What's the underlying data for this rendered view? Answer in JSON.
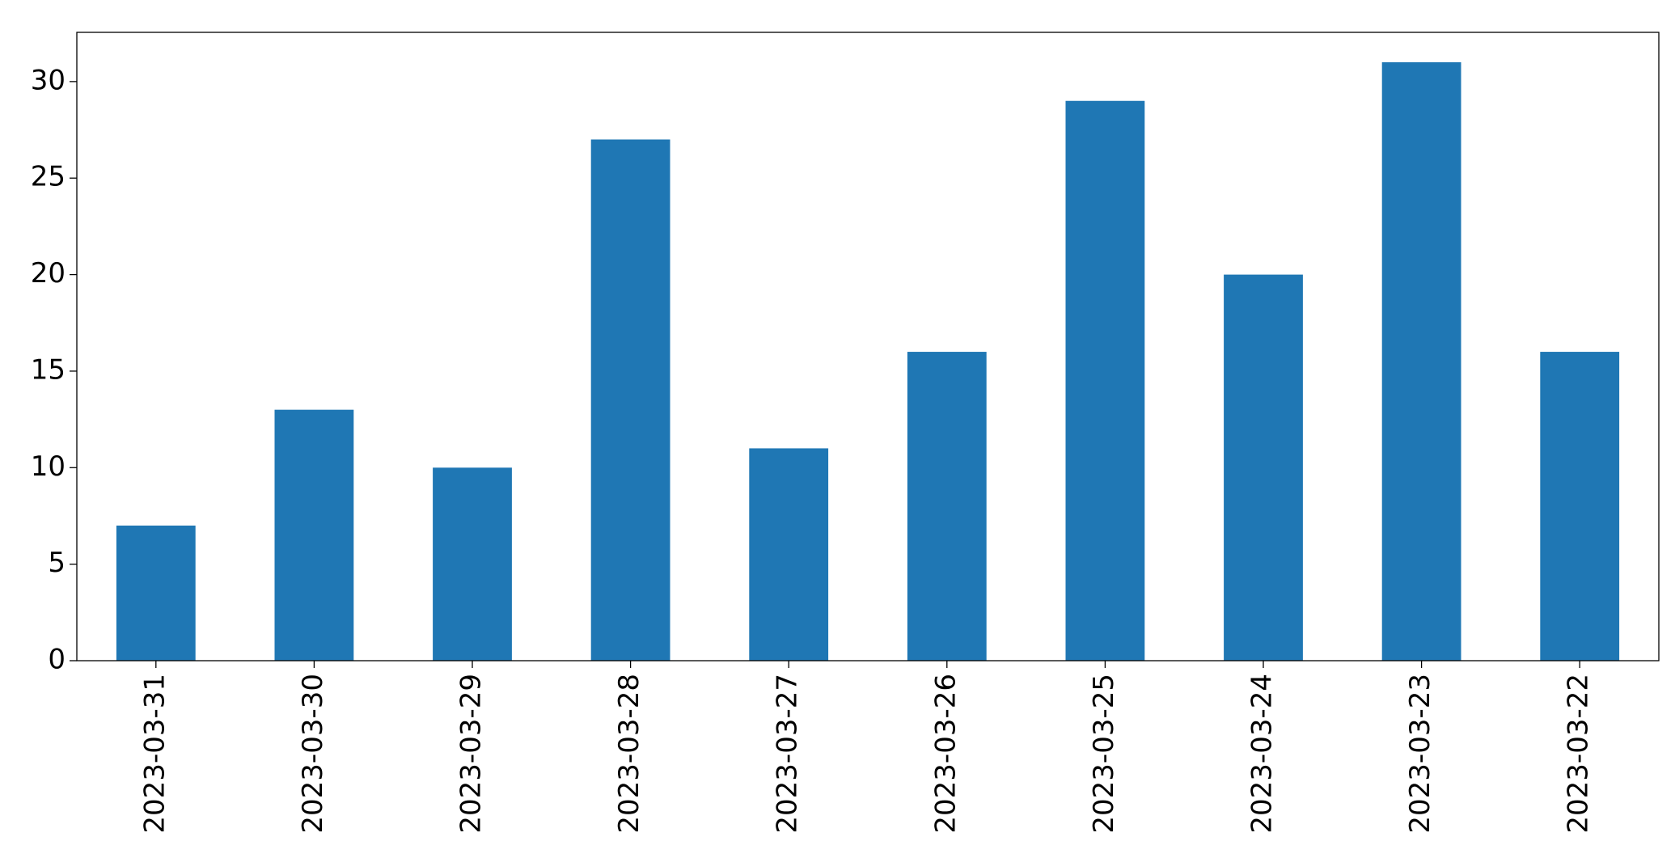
{
  "chart_data": {
    "type": "bar",
    "categories": [
      "2023-03-31",
      "2023-03-30",
      "2023-03-29",
      "2023-03-28",
      "2023-03-27",
      "2023-03-26",
      "2023-03-25",
      "2023-03-24",
      "2023-03-23",
      "2023-03-22"
    ],
    "values": [
      7,
      13,
      10,
      27,
      11,
      16,
      29,
      20,
      31,
      16
    ],
    "color": "#1f77b4",
    "ylim": [
      0,
      32.55
    ],
    "yticks": [
      0,
      5,
      10,
      15,
      20,
      25,
      30
    ],
    "grid": false
  }
}
